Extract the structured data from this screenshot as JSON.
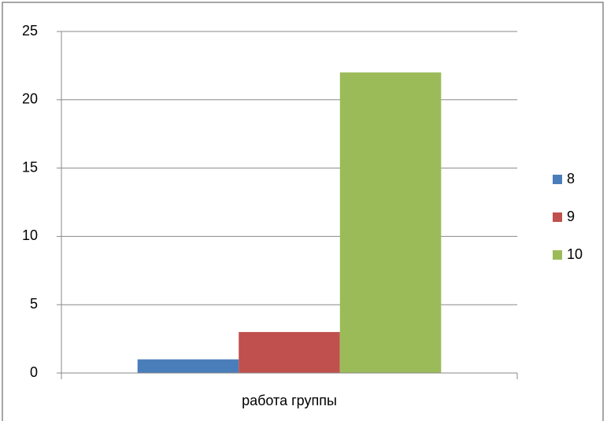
{
  "chart_data": {
    "type": "bar",
    "categories": [
      "работа группы"
    ],
    "series": [
      {
        "name": "8",
        "color": "#4a7ebb",
        "values": [
          1
        ]
      },
      {
        "name": "9",
        "color": "#c0504d",
        "values": [
          3
        ]
      },
      {
        "name": "10",
        "color": "#9bbb59",
        "values": [
          22
        ]
      }
    ],
    "ylim": [
      0,
      25
    ],
    "yticks": [
      0,
      5,
      10,
      15,
      20,
      25
    ],
    "grid": true,
    "legend": "right"
  }
}
